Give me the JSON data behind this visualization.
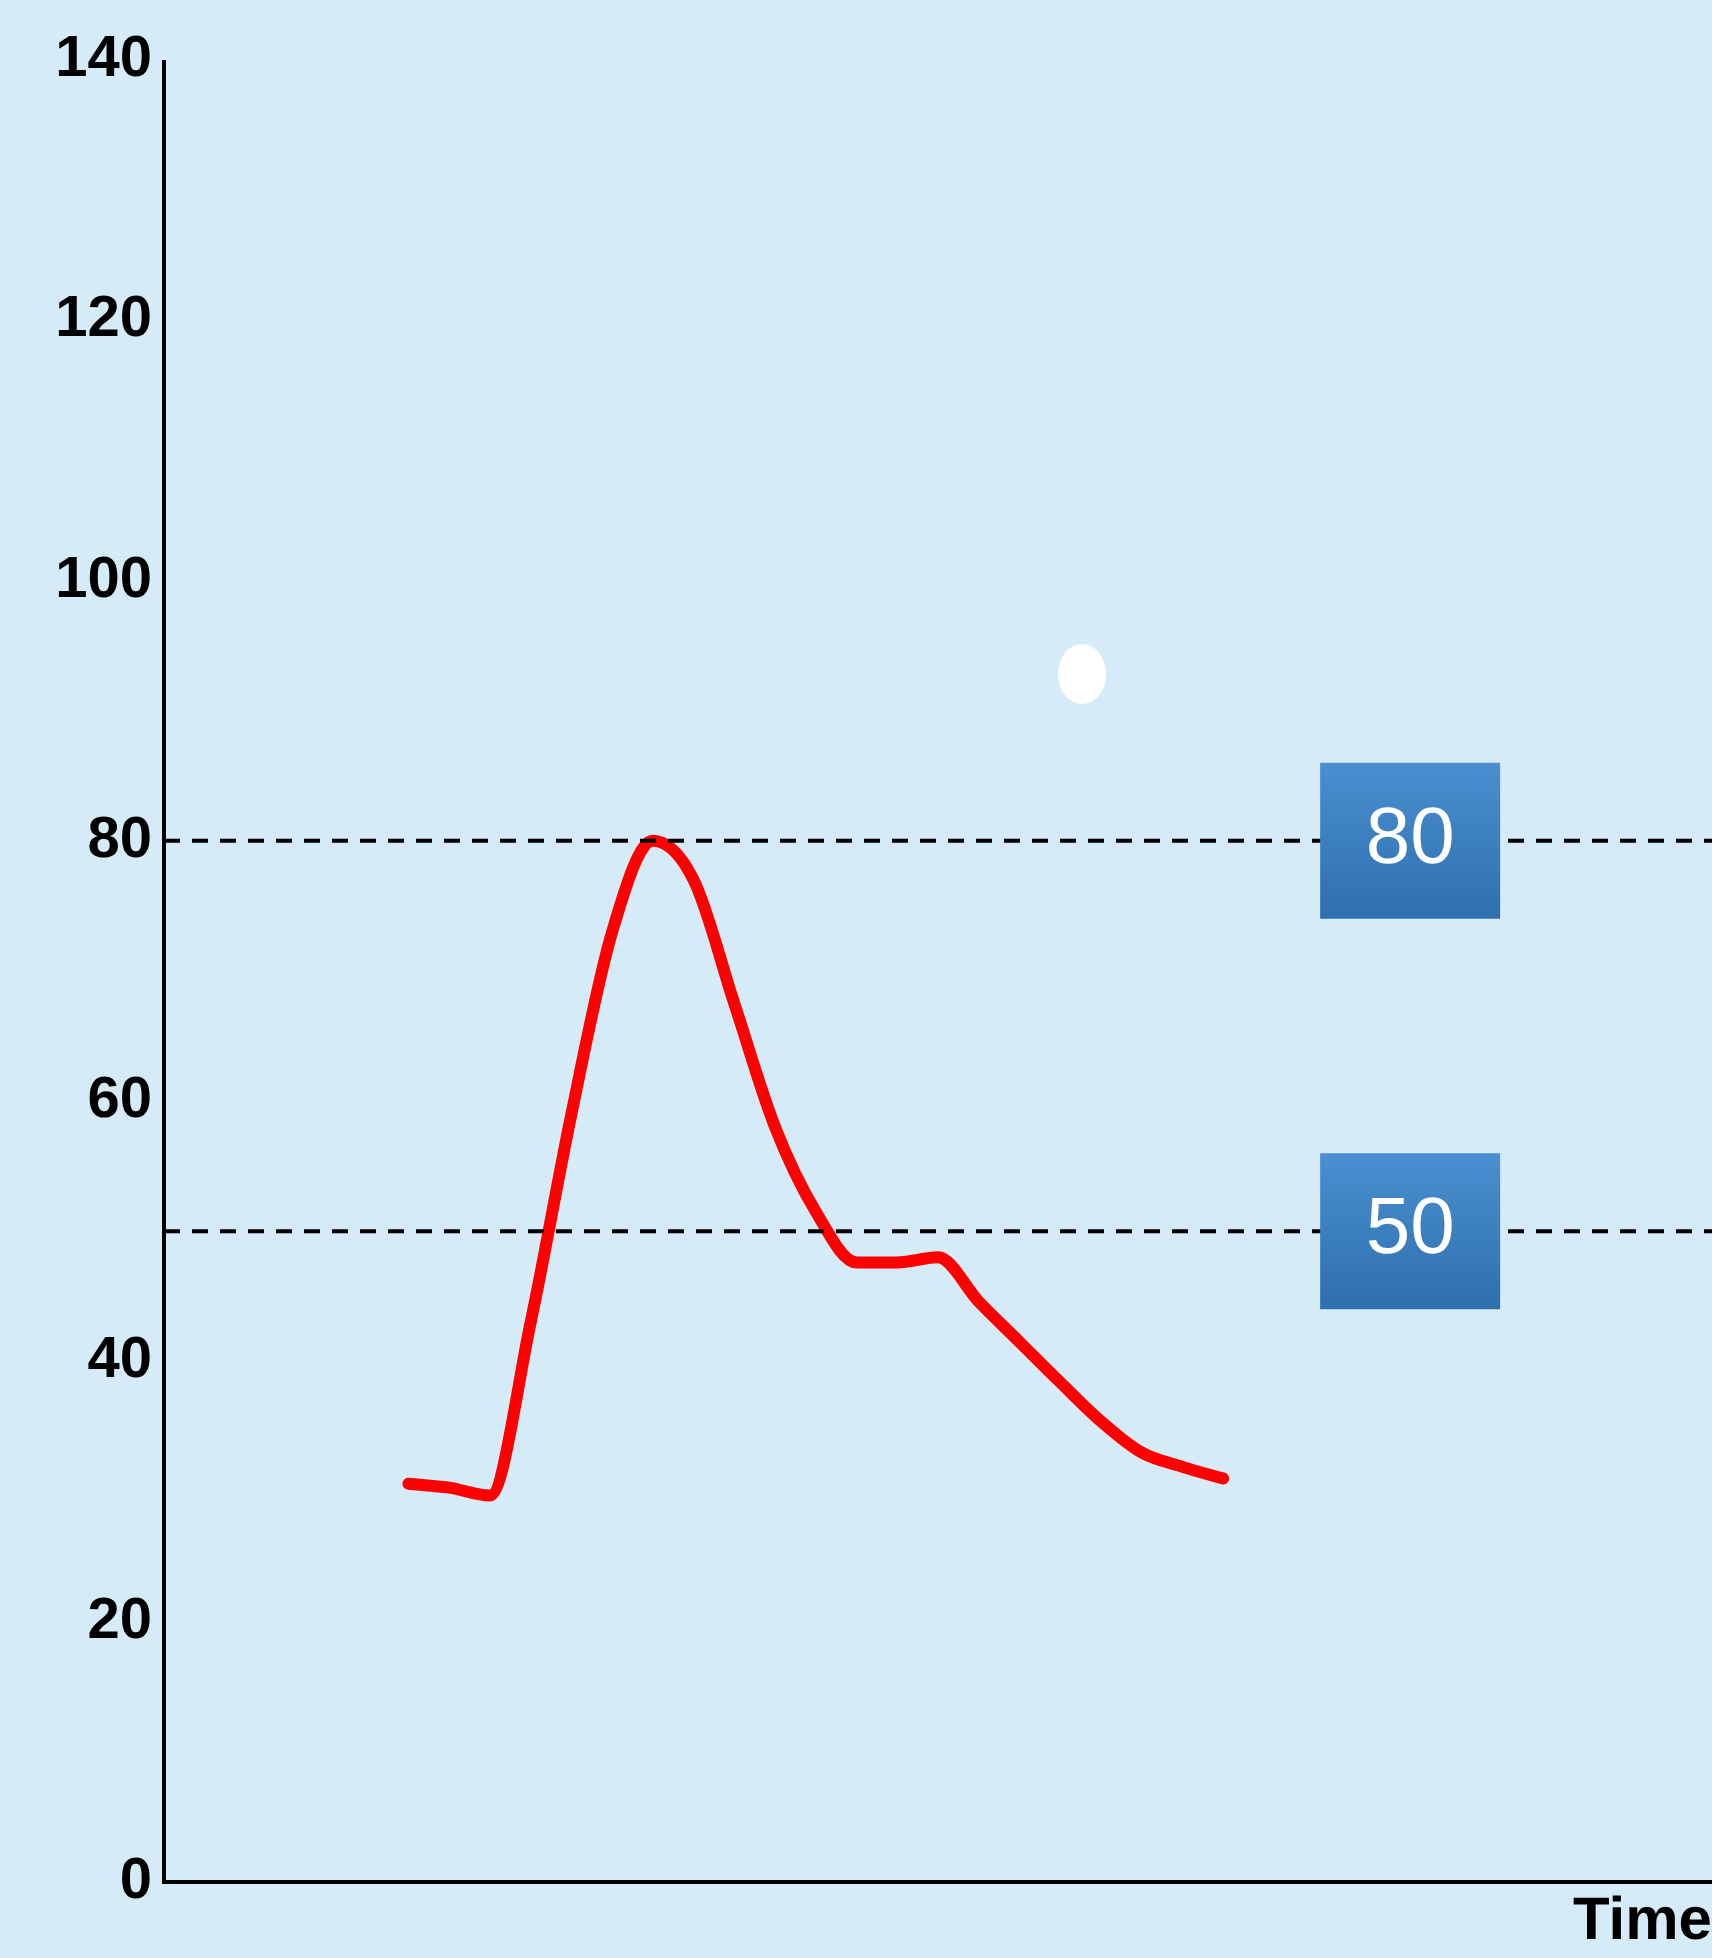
{
  "chart_data": {
    "type": "line",
    "xlabel": "Time",
    "categories": [
      null,
      null,
      null,
      null,
      null,
      null,
      null,
      null,
      null,
      null,
      null,
      null,
      null,
      null,
      null,
      null,
      null,
      null,
      null,
      null,
      null,
      null,
      null,
      null,
      null,
      null,
      null,
      null,
      null,
      null,
      null,
      null,
      null,
      null,
      null,
      null,
      null,
      null,
      null
    ],
    "series": [
      {
        "color": "#ff0000",
        "values": [
          null,
          null,
          null,
          null,
          null,
          null,
          30.6,
          30.3,
          29.7,
          43,
          59,
          73,
          80,
          77,
          67.5,
          58,
          51.5,
          47.6,
          47.6,
          48,
          44.6,
          41.5,
          38.4,
          35.4,
          33,
          31.9,
          31,
          null,
          null,
          null,
          null,
          null,
          null,
          null,
          null,
          null,
          null,
          null,
          null
        ]
      }
    ],
    "ylim": [
      0,
      140
    ],
    "yticks": [
      0,
      20,
      40,
      60,
      80,
      100,
      120,
      140
    ],
    "tick_labels": "y",
    "grid": false,
    "legend": false,
    "marker": "none",
    "line_style": "solid",
    "ref_lines": [
      {
        "axis": "y",
        "value": 80,
        "label": "80",
        "line_style": "dashed",
        "color": "#000000"
      },
      {
        "axis": "y",
        "value": 50,
        "label": "50",
        "line_style": "dashed",
        "color": "#000000"
      }
    ]
  }
}
